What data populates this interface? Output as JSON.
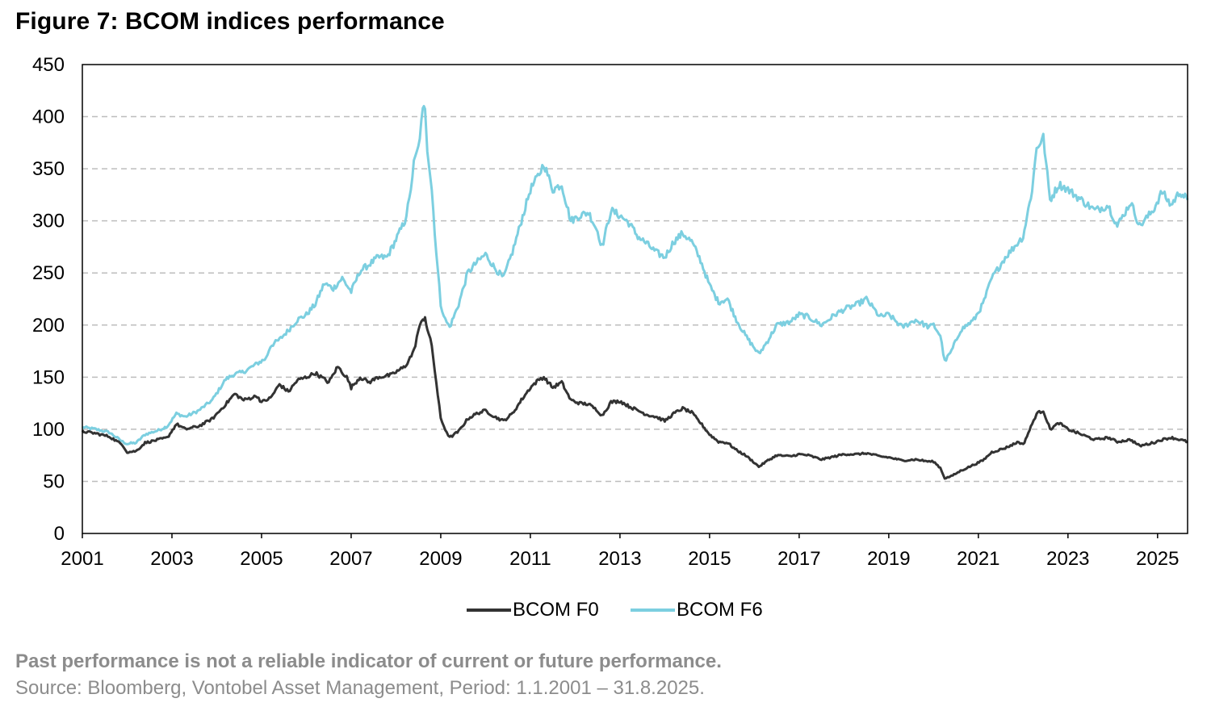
{
  "header": {
    "title": "Figure 7: BCOM indices performance"
  },
  "footer": {
    "disclaimer": "Past performance is not a reliable indicator of current or future performance.",
    "source": "Source: Bloomberg, Vontobel Asset Management, Period: 1.1.2001 – 31.8.2025."
  },
  "colors": {
    "f0": "#333333",
    "f6": "#7ccfe0",
    "grid": "#bdbdbd",
    "axis": "#000000"
  },
  "chart_data": {
    "type": "line",
    "title": "Figure 7: BCOM indices performance",
    "xlabel": "",
    "ylabel": "",
    "xlim": [
      2001,
      2025.67
    ],
    "ylim": [
      0,
      450
    ],
    "x_ticks": [
      "2001",
      "2003",
      "2005",
      "2007",
      "2009",
      "2011",
      "2013",
      "2015",
      "2017",
      "2019",
      "2021",
      "2023",
      "2025"
    ],
    "y_ticks": [
      "0",
      "50",
      "100",
      "150",
      "200",
      "250",
      "300",
      "350",
      "400",
      "450"
    ],
    "grid": "horizontal dashed",
    "legend_position": "bottom-center",
    "series": [
      {
        "name": "BCOM F0",
        "color": "#333333",
        "points": [
          [
            2001.0,
            98
          ],
          [
            2001.3,
            96
          ],
          [
            2001.6,
            93
          ],
          [
            2001.9,
            85
          ],
          [
            2002.0,
            78
          ],
          [
            2002.2,
            79
          ],
          [
            2002.4,
            87
          ],
          [
            2002.7,
            90
          ],
          [
            2002.9,
            92
          ],
          [
            2003.1,
            105
          ],
          [
            2003.3,
            100
          ],
          [
            2003.6,
            103
          ],
          [
            2003.9,
            110
          ],
          [
            2004.2,
            124
          ],
          [
            2004.4,
            134
          ],
          [
            2004.6,
            128
          ],
          [
            2004.9,
            132
          ],
          [
            2005.0,
            126
          ],
          [
            2005.2,
            130
          ],
          [
            2005.4,
            143
          ],
          [
            2005.6,
            136
          ],
          [
            2005.8,
            147
          ],
          [
            2006.0,
            150
          ],
          [
            2006.2,
            154
          ],
          [
            2006.5,
            145
          ],
          [
            2006.7,
            160
          ],
          [
            2006.9,
            150
          ],
          [
            2007.0,
            140
          ],
          [
            2007.2,
            150
          ],
          [
            2007.4,
            145
          ],
          [
            2007.6,
            150
          ],
          [
            2007.9,
            152
          ],
          [
            2008.0,
            155
          ],
          [
            2008.2,
            160
          ],
          [
            2008.4,
            175
          ],
          [
            2008.5,
            195
          ],
          [
            2008.6,
            205
          ],
          [
            2008.65,
            208
          ],
          [
            2008.7,
            196
          ],
          [
            2008.8,
            180
          ],
          [
            2008.9,
            145
          ],
          [
            2009.0,
            110
          ],
          [
            2009.1,
            100
          ],
          [
            2009.2,
            92
          ],
          [
            2009.4,
            98
          ],
          [
            2009.6,
            110
          ],
          [
            2009.8,
            115
          ],
          [
            2010.0,
            118
          ],
          [
            2010.2,
            112
          ],
          [
            2010.4,
            108
          ],
          [
            2010.6,
            115
          ],
          [
            2010.8,
            128
          ],
          [
            2011.0,
            140
          ],
          [
            2011.2,
            148
          ],
          [
            2011.3,
            150
          ],
          [
            2011.5,
            140
          ],
          [
            2011.7,
            145
          ],
          [
            2011.9,
            128
          ],
          [
            2012.1,
            125
          ],
          [
            2012.3,
            124
          ],
          [
            2012.5,
            118
          ],
          [
            2012.6,
            113
          ],
          [
            2012.8,
            126
          ],
          [
            2013.0,
            127
          ],
          [
            2013.2,
            122
          ],
          [
            2013.4,
            118
          ],
          [
            2013.6,
            114
          ],
          [
            2013.8,
            112
          ],
          [
            2014.0,
            108
          ],
          [
            2014.2,
            115
          ],
          [
            2014.4,
            120
          ],
          [
            2014.6,
            116
          ],
          [
            2014.8,
            106
          ],
          [
            2015.0,
            95
          ],
          [
            2015.2,
            88
          ],
          [
            2015.4,
            87
          ],
          [
            2015.6,
            80
          ],
          [
            2015.8,
            75
          ],
          [
            2016.0,
            68
          ],
          [
            2016.1,
            64
          ],
          [
            2016.3,
            70
          ],
          [
            2016.5,
            75
          ],
          [
            2016.8,
            74
          ],
          [
            2017.0,
            76
          ],
          [
            2017.2,
            75
          ],
          [
            2017.5,
            71
          ],
          [
            2017.8,
            74
          ],
          [
            2018.0,
            76
          ],
          [
            2018.3,
            76
          ],
          [
            2018.5,
            77
          ],
          [
            2018.8,
            74
          ],
          [
            2019.0,
            73
          ],
          [
            2019.3,
            70
          ],
          [
            2019.6,
            71
          ],
          [
            2019.9,
            69
          ],
          [
            2020.0,
            69
          ],
          [
            2020.15,
            63
          ],
          [
            2020.25,
            53
          ],
          [
            2020.4,
            55
          ],
          [
            2020.6,
            60
          ],
          [
            2020.9,
            66
          ],
          [
            2021.1,
            70
          ],
          [
            2021.3,
            78
          ],
          [
            2021.6,
            82
          ],
          [
            2021.9,
            88
          ],
          [
            2022.0,
            85
          ],
          [
            2022.2,
            105
          ],
          [
            2022.3,
            115
          ],
          [
            2022.45,
            118
          ],
          [
            2022.6,
            100
          ],
          [
            2022.8,
            106
          ],
          [
            2023.0,
            100
          ],
          [
            2023.3,
            95
          ],
          [
            2023.6,
            90
          ],
          [
            2023.9,
            92
          ],
          [
            2024.1,
            88
          ],
          [
            2024.4,
            90
          ],
          [
            2024.6,
            84
          ],
          [
            2024.9,
            87
          ],
          [
            2025.1,
            90
          ],
          [
            2025.3,
            92
          ],
          [
            2025.5,
            90
          ],
          [
            2025.67,
            88
          ]
        ]
      },
      {
        "name": "BCOM F6",
        "color": "#7ccfe0",
        "points": [
          [
            2001.0,
            102
          ],
          [
            2001.3,
            100
          ],
          [
            2001.6,
            97
          ],
          [
            2001.9,
            88
          ],
          [
            2002.0,
            86
          ],
          [
            2002.2,
            87
          ],
          [
            2002.4,
            95
          ],
          [
            2002.7,
            99
          ],
          [
            2002.9,
            103
          ],
          [
            2003.1,
            115
          ],
          [
            2003.3,
            112
          ],
          [
            2003.6,
            118
          ],
          [
            2003.9,
            128
          ],
          [
            2004.2,
            148
          ],
          [
            2004.4,
            153
          ],
          [
            2004.6,
            155
          ],
          [
            2004.9,
            163
          ],
          [
            2005.1,
            168
          ],
          [
            2005.2,
            180
          ],
          [
            2005.4,
            186
          ],
          [
            2005.6,
            195
          ],
          [
            2005.8,
            205
          ],
          [
            2006.0,
            210
          ],
          [
            2006.2,
            220
          ],
          [
            2006.4,
            240
          ],
          [
            2006.6,
            235
          ],
          [
            2006.8,
            245
          ],
          [
            2007.0,
            232
          ],
          [
            2007.2,
            252
          ],
          [
            2007.4,
            258
          ],
          [
            2007.6,
            265
          ],
          [
            2007.8,
            265
          ],
          [
            2008.0,
            282
          ],
          [
            2008.2,
            300
          ],
          [
            2008.3,
            320
          ],
          [
            2008.4,
            355
          ],
          [
            2008.5,
            370
          ],
          [
            2008.6,
            405
          ],
          [
            2008.65,
            410
          ],
          [
            2008.7,
            370
          ],
          [
            2008.8,
            330
          ],
          [
            2008.9,
            270
          ],
          [
            2009.0,
            220
          ],
          [
            2009.1,
            205
          ],
          [
            2009.2,
            198
          ],
          [
            2009.4,
            220
          ],
          [
            2009.6,
            250
          ],
          [
            2009.8,
            260
          ],
          [
            2010.0,
            268
          ],
          [
            2010.2,
            255
          ],
          [
            2010.4,
            245
          ],
          [
            2010.6,
            270
          ],
          [
            2010.8,
            300
          ],
          [
            2011.0,
            330
          ],
          [
            2011.2,
            345
          ],
          [
            2011.3,
            355
          ],
          [
            2011.5,
            330
          ],
          [
            2011.7,
            335
          ],
          [
            2011.9,
            300
          ],
          [
            2012.1,
            305
          ],
          [
            2012.3,
            308
          ],
          [
            2012.5,
            290
          ],
          [
            2012.6,
            275
          ],
          [
            2012.8,
            310
          ],
          [
            2013.0,
            305
          ],
          [
            2013.2,
            298
          ],
          [
            2013.4,
            285
          ],
          [
            2013.6,
            278
          ],
          [
            2013.8,
            270
          ],
          [
            2014.0,
            265
          ],
          [
            2014.2,
            280
          ],
          [
            2014.4,
            288
          ],
          [
            2014.6,
            280
          ],
          [
            2014.8,
            262
          ],
          [
            2015.0,
            238
          ],
          [
            2015.2,
            222
          ],
          [
            2015.4,
            225
          ],
          [
            2015.6,
            205
          ],
          [
            2015.8,
            190
          ],
          [
            2016.0,
            178
          ],
          [
            2016.1,
            172
          ],
          [
            2016.3,
            185
          ],
          [
            2016.5,
            200
          ],
          [
            2016.8,
            203
          ],
          [
            2017.0,
            210
          ],
          [
            2017.2,
            208
          ],
          [
            2017.5,
            200
          ],
          [
            2017.8,
            210
          ],
          [
            2018.0,
            215
          ],
          [
            2018.3,
            220
          ],
          [
            2018.5,
            225
          ],
          [
            2018.8,
            208
          ],
          [
            2019.0,
            210
          ],
          [
            2019.3,
            198
          ],
          [
            2019.6,
            205
          ],
          [
            2019.9,
            198
          ],
          [
            2020.0,
            200
          ],
          [
            2020.15,
            190
          ],
          [
            2020.25,
            165
          ],
          [
            2020.4,
            175
          ],
          [
            2020.6,
            195
          ],
          [
            2020.9,
            205
          ],
          [
            2021.1,
            220
          ],
          [
            2021.3,
            245
          ],
          [
            2021.6,
            265
          ],
          [
            2021.9,
            280
          ],
          [
            2022.0,
            285
          ],
          [
            2022.2,
            330
          ],
          [
            2022.3,
            370
          ],
          [
            2022.45,
            380
          ],
          [
            2022.6,
            320
          ],
          [
            2022.8,
            335
          ],
          [
            2023.0,
            330
          ],
          [
            2023.3,
            320
          ],
          [
            2023.6,
            310
          ],
          [
            2023.9,
            315
          ],
          [
            2024.1,
            295
          ],
          [
            2024.4,
            318
          ],
          [
            2024.6,
            295
          ],
          [
            2024.9,
            310
          ],
          [
            2025.1,
            328
          ],
          [
            2025.3,
            315
          ],
          [
            2025.5,
            328
          ],
          [
            2025.67,
            320
          ]
        ]
      }
    ]
  }
}
